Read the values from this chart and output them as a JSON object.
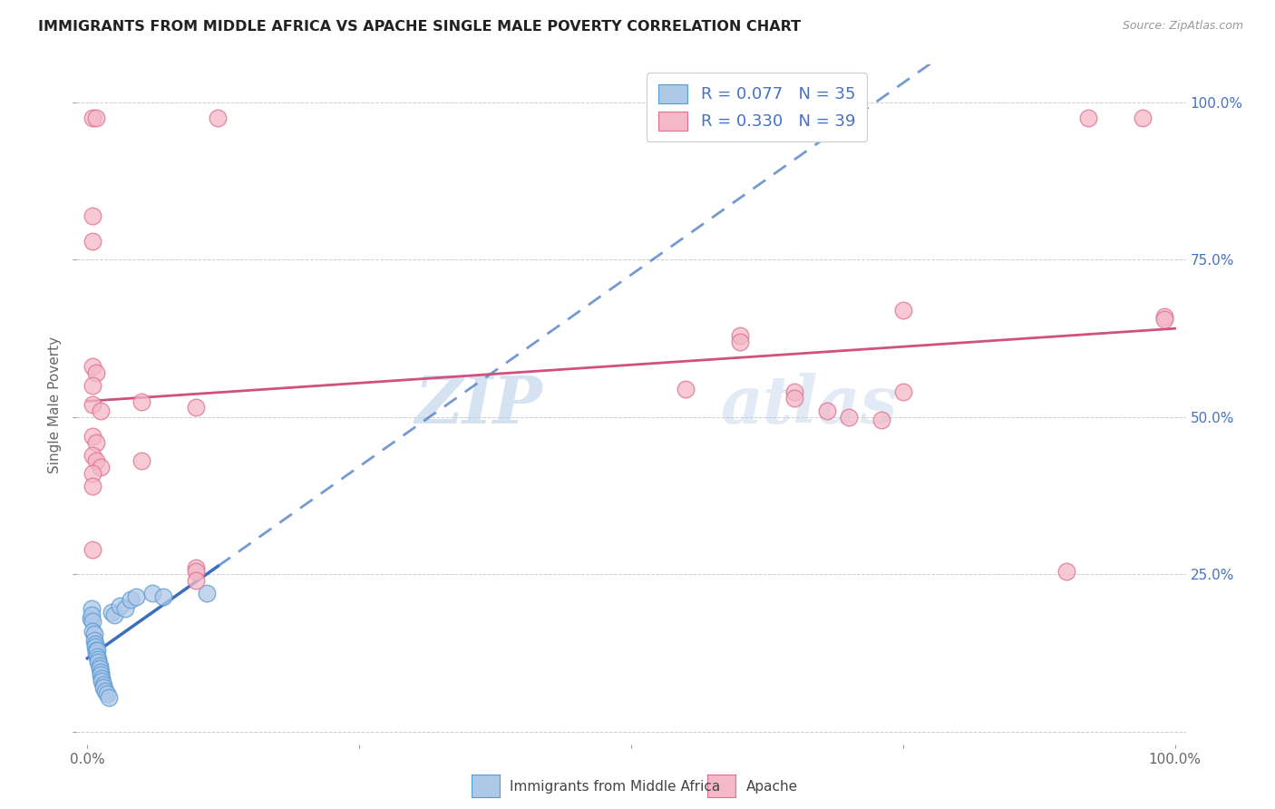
{
  "title": "IMMIGRANTS FROM MIDDLE AFRICA VS APACHE SINGLE MALE POVERTY CORRELATION CHART",
  "source": "Source: ZipAtlas.com",
  "ylabel": "Single Male Poverty",
  "R1": 0.077,
  "N1": 35,
  "R2": 0.33,
  "N2": 39,
  "watermark_zip": "ZIP",
  "watermark_atlas": "atlas",
  "legend_label1": "Immigrants from Middle Africa",
  "legend_label2": "Apache",
  "blue_color": "#aec8e8",
  "blue_edge_color": "#5b9bd5",
  "pink_color": "#f4b8c8",
  "pink_edge_color": "#e07090",
  "blue_line_color": "#3a6fbf",
  "pink_line_color": "#d05080",
  "blue_scatter": [
    [
      0.003,
      0.18
    ],
    [
      0.004,
      0.195
    ],
    [
      0.004,
      0.185
    ],
    [
      0.005,
      0.175
    ],
    [
      0.005,
      0.16
    ],
    [
      0.006,
      0.155
    ],
    [
      0.006,
      0.145
    ],
    [
      0.007,
      0.14
    ],
    [
      0.007,
      0.135
    ],
    [
      0.008,
      0.13
    ],
    [
      0.008,
      0.125
    ],
    [
      0.009,
      0.13
    ],
    [
      0.009,
      0.12
    ],
    [
      0.01,
      0.115
    ],
    [
      0.01,
      0.11
    ],
    [
      0.011,
      0.105
    ],
    [
      0.011,
      0.1
    ],
    [
      0.012,
      0.095
    ],
    [
      0.012,
      0.09
    ],
    [
      0.013,
      0.085
    ],
    [
      0.013,
      0.08
    ],
    [
      0.015,
      0.075
    ],
    [
      0.015,
      0.07
    ],
    [
      0.016,
      0.065
    ],
    [
      0.018,
      0.06
    ],
    [
      0.02,
      0.055
    ],
    [
      0.022,
      0.19
    ],
    [
      0.025,
      0.185
    ],
    [
      0.03,
      0.2
    ],
    [
      0.035,
      0.195
    ],
    [
      0.04,
      0.21
    ],
    [
      0.045,
      0.215
    ],
    [
      0.06,
      0.22
    ],
    [
      0.07,
      0.215
    ],
    [
      0.11,
      0.22
    ]
  ],
  "pink_scatter": [
    [
      0.005,
      0.975
    ],
    [
      0.008,
      0.975
    ],
    [
      0.12,
      0.975
    ],
    [
      0.005,
      0.82
    ],
    [
      0.005,
      0.78
    ],
    [
      0.005,
      0.58
    ],
    [
      0.008,
      0.57
    ],
    [
      0.005,
      0.55
    ],
    [
      0.005,
      0.52
    ],
    [
      0.012,
      0.51
    ],
    [
      0.005,
      0.47
    ],
    [
      0.008,
      0.46
    ],
    [
      0.005,
      0.44
    ],
    [
      0.008,
      0.43
    ],
    [
      0.012,
      0.42
    ],
    [
      0.005,
      0.41
    ],
    [
      0.005,
      0.39
    ],
    [
      0.05,
      0.525
    ],
    [
      0.05,
      0.43
    ],
    [
      0.1,
      0.515
    ],
    [
      0.1,
      0.26
    ],
    [
      0.1,
      0.255
    ],
    [
      0.55,
      0.545
    ],
    [
      0.6,
      0.63
    ],
    [
      0.6,
      0.62
    ],
    [
      0.65,
      0.54
    ],
    [
      0.65,
      0.53
    ],
    [
      0.68,
      0.51
    ],
    [
      0.7,
      0.5
    ],
    [
      0.73,
      0.495
    ],
    [
      0.75,
      0.67
    ],
    [
      0.75,
      0.54
    ],
    [
      0.9,
      0.255
    ],
    [
      0.92,
      0.975
    ],
    [
      0.97,
      0.975
    ],
    [
      0.99,
      0.66
    ],
    [
      0.99,
      0.655
    ],
    [
      0.005,
      0.29
    ],
    [
      0.1,
      0.24
    ]
  ],
  "xlim": [
    0.0,
    1.0
  ],
  "ylim": [
    0.0,
    1.0
  ],
  "background_color": "#ffffff"
}
